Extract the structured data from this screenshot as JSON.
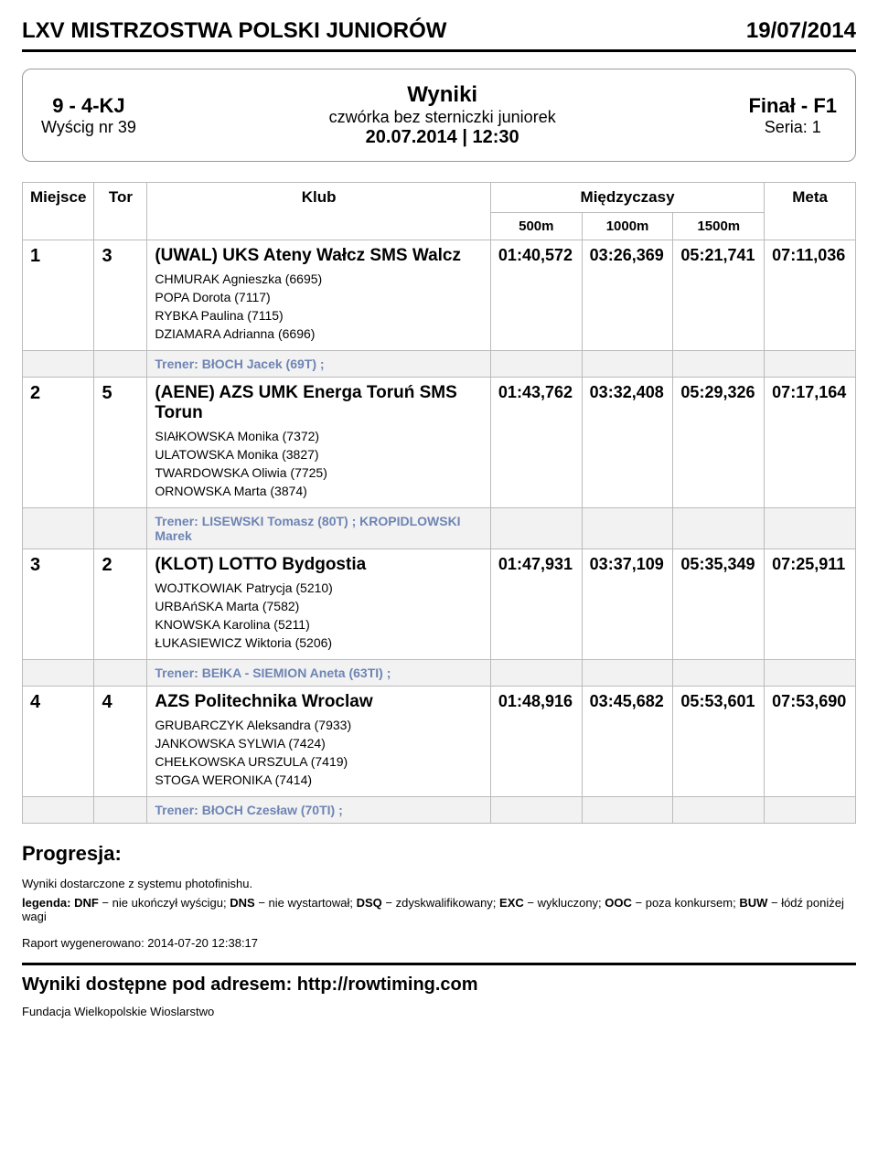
{
  "header": {
    "title": "LXV MISTRZOSTWA POLSKI JUNIORÓW",
    "date": "19/07/2014"
  },
  "info": {
    "race_code": "9 - 4-KJ",
    "race_num": "Wyścig nr 39",
    "wyniki": "Wyniki",
    "desc": "czwórka bez sterniczki juniorek",
    "datetime": "20.07.2014 | 12:30",
    "final": "Finał - F1",
    "series": "Seria: 1"
  },
  "table": {
    "headers": {
      "miejsce": "Miejsce",
      "tor": "Tor",
      "klub": "Klub",
      "miedzyczasy": "Międzyczasy",
      "m500": "500m",
      "m1000": "1000m",
      "m1500": "1500m",
      "meta": "Meta"
    },
    "rows": [
      {
        "place": "1",
        "lane": "3",
        "club": "(UWAL) UKS Ateny Wałcz SMS Walcz",
        "crew": [
          "CHMURAK Agnieszka (6695)",
          "POPA Dorota (7117)",
          "RYBKA Paulina (7115)",
          "DZIAMARA Adrianna (6696)"
        ],
        "t500": "01:40,572",
        "t1000": "03:26,369",
        "t1500": "05:21,741",
        "meta": "07:11,036",
        "trainer": "BłOCH Jacek (69T) ;"
      },
      {
        "place": "2",
        "lane": "5",
        "club": "(AENE) AZS UMK Energa Toruń SMS Torun",
        "crew": [
          "SIAłKOWSKA Monika (7372)",
          "ULATOWSKA Monika (3827)",
          "TWARDOWSKA Oliwia (7725)",
          "ORNOWSKA Marta (3874)"
        ],
        "t500": "01:43,762",
        "t1000": "03:32,408",
        "t1500": "05:29,326",
        "meta": "07:17,164",
        "trainer": "LISEWSKI Tomasz (80T) ; KROPIDLOWSKI Marek"
      },
      {
        "place": "3",
        "lane": "2",
        "club": "(KLOT) LOTTO Bydgostia",
        "crew": [
          "WOJTKOWIAK Patrycja (5210)",
          "URBAńSKA Marta (7582)",
          "KNOWSKA Karolina (5211)",
          "ŁUKASIEWICZ Wiktoria (5206)"
        ],
        "t500": "01:47,931",
        "t1000": "03:37,109",
        "t1500": "05:35,349",
        "meta": "07:25,911",
        "trainer": "BEłKA - SIEMION Aneta (63TI) ;"
      },
      {
        "place": "4",
        "lane": "4",
        "club": "AZS Politechnika Wroclaw",
        "crew": [
          "GRUBARCZYK Aleksandra (7933)",
          "JANKOWSKA SYLWIA (7424)",
          "CHEŁKOWSKA URSZULA (7419)",
          "STOGA WERONIKA (7414)"
        ],
        "t500": "01:48,916",
        "t1000": "03:45,682",
        "t1500": "05:53,601",
        "meta": "07:53,690",
        "trainer": "BłOCH Czesław (70TI) ;"
      }
    ]
  },
  "progresja": "Progresja:",
  "footnote1": "Wyniki dostarczone z systemu photofinishu.",
  "legend_label": "legenda:",
  "legend_body": " DNF − nie ukończył wyścigu; DNS − nie wystartował; DSQ − zdyskwalifikowany; EXC − wykluczony; OOC − poza konkursem; BUW − łódź poniżej wagi",
  "raport": "Raport wygenerowano: 2014-07-20 12:38:17",
  "wyniki_link": "Wyniki dostępne pod adresem: http://rowtiming.com",
  "fundacja": "Fundacja Wielkopolskie Wioslarstwo",
  "trainer_label": "Trener:"
}
